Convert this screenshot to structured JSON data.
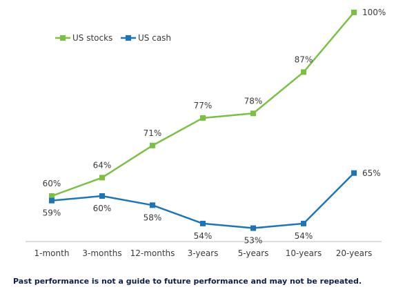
{
  "chart_data": {
    "type": "line",
    "categories": [
      "1-month",
      "3-months",
      "12-months",
      "3-years",
      "5-years",
      "10-years",
      "20-years"
    ],
    "series": [
      {
        "name": "US stocks",
        "color": "#7ac143",
        "marker": "square",
        "values": [
          60,
          64,
          71,
          77,
          78,
          87,
          100
        ],
        "labels": [
          "60%",
          "64%",
          "71%",
          "77%",
          "78%",
          "87%",
          "100%"
        ]
      },
      {
        "name": "US cash",
        "color": "#1b75bb",
        "marker": "square",
        "values": [
          59,
          60,
          58,
          54,
          53,
          54,
          65
        ],
        "labels": [
          "59%",
          "60%",
          "58%",
          "54%",
          "53%",
          "54%",
          "65%"
        ]
      }
    ],
    "legend_position": "top-left",
    "grid": false,
    "ylim": [
      45,
      100
    ],
    "axis_color": "#bdbdbd"
  },
  "footnote": "Past performance is not a guide to future performance and may not be repeated."
}
